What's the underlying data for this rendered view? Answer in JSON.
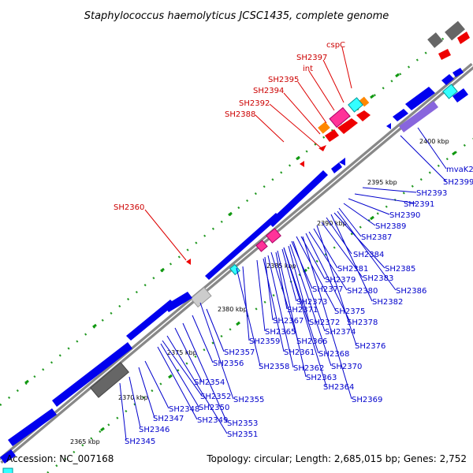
{
  "title": "Staphylococcus haemolyticus JCSC1435, complete genome",
  "footer": {
    "accession": "Accession: NC_007168",
    "summary": "Topology: circular; Length: 2,685,015 bp; Genes: 2,752"
  },
  "colors": {
    "forward_gene": "#ee0000",
    "reverse_gene": "#0000ee",
    "rna_gene": "#33ffff",
    "pseudo_gene": "#ff3399",
    "other_gene": "#ff8800",
    "purple_gene": "#8866dd",
    "grey_gene": "#666666",
    "backbone": "#888888",
    "dots": "#229922"
  },
  "ticks": [
    {
      "label": "2365 kbp"
    },
    {
      "label": "2370 kbp"
    },
    {
      "label": "2375 kbp"
    },
    {
      "label": "2380 kbp"
    },
    {
      "label": "2385 kbp"
    },
    {
      "label": "2390 kbp"
    },
    {
      "label": "2395 kbp"
    },
    {
      "label": "2400 kbp"
    }
  ],
  "red_labels": [
    "cspC",
    "SH2397",
    "int",
    "SH2395",
    "SH2394",
    "SH2392",
    "SH2388",
    "SH2360"
  ],
  "blue_labels": [
    "mvaK2",
    "SH2399",
    "SH2393",
    "SH2391",
    "SH2390",
    "SH2389",
    "SH2387",
    "SH2384",
    "SH2385",
    "SH2381",
    "SH2383",
    "SH2386",
    "SH2379",
    "SH2380",
    "SH2377",
    "SH2382",
    "SH2373",
    "SH2375",
    "SH2371",
    "SH2378",
    "SH2367",
    "SH2372",
    "SH2365",
    "SH2374",
    "SH2359",
    "SH2366",
    "SH2376",
    "SH2361",
    "SH2368",
    "SH2357",
    "SH2356",
    "SH2358",
    "SH2362",
    "SH2370",
    "SH2363",
    "SH2354",
    "SH2364",
    "SH2352",
    "SH2355",
    "SH2369",
    "SH2350",
    "SH2348",
    "SH2347",
    "SH2349",
    "SH2353",
    "SH2346",
    "SH2351",
    "SH2345"
  ]
}
